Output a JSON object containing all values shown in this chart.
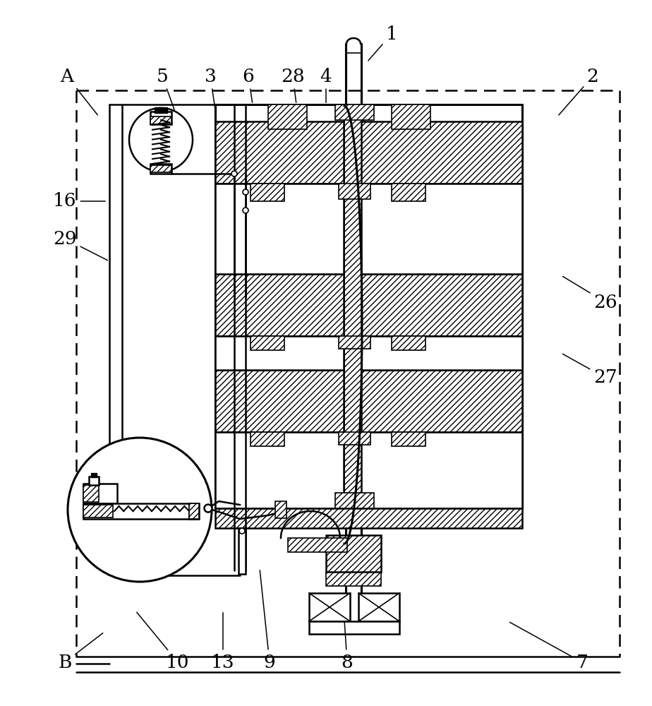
{
  "bg_color": "#ffffff",
  "figsize": [
    9.24,
    10.0
  ],
  "dpi": 100,
  "labels": {
    "1": [
      555,
      48,
      520,
      88
    ],
    "2": [
      840,
      108,
      790,
      165
    ],
    "A": [
      95,
      108,
      140,
      165
    ],
    "5": [
      230,
      108,
      248,
      158
    ],
    "3": [
      298,
      108,
      305,
      155
    ],
    "6": [
      352,
      108,
      358,
      148
    ],
    "28": [
      415,
      108,
      420,
      148
    ],
    "4": [
      462,
      108,
      462,
      148
    ],
    "16": [
      92,
      285,
      152,
      285
    ],
    "29": [
      92,
      338,
      155,
      370
    ],
    "26": [
      858,
      428,
      795,
      390
    ],
    "27": [
      858,
      535,
      795,
      500
    ],
    "B": [
      92,
      938,
      148,
      895
    ],
    "10": [
      252,
      938,
      192,
      865
    ],
    "13": [
      316,
      938,
      316,
      865
    ],
    "9": [
      382,
      938,
      368,
      805
    ],
    "8": [
      492,
      938,
      488,
      878
    ],
    "7": [
      825,
      938,
      720,
      880
    ]
  }
}
